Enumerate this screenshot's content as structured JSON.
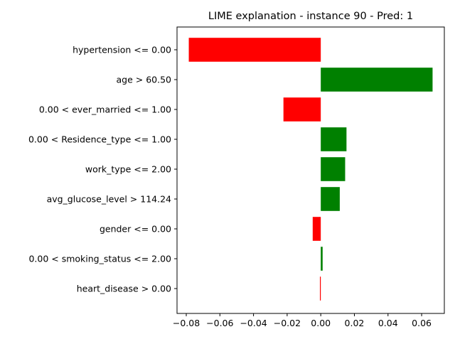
{
  "chart_data": {
    "type": "bar",
    "orientation": "horizontal",
    "title": "LIME explanation - instance 90 - Pred: 1",
    "xlabel": "",
    "ylabel": "",
    "categories": [
      "hypertension <= 0.00",
      "age > 60.50",
      "0.00 < ever_married <= 1.00",
      "0.00 < Residence_type <= 1.00",
      "work_type <= 2.00",
      "avg_glucose_level > 114.24",
      "gender <= 0.00",
      "0.00 < smoking_status <= 2.00",
      "heart_disease > 0.00"
    ],
    "values": [
      -0.0785,
      0.0665,
      -0.0222,
      0.0153,
      0.0145,
      0.0113,
      -0.0048,
      0.0011,
      -0.0005
    ],
    "xlim": [
      -0.0855,
      0.0735
    ],
    "xticks": [
      -0.08,
      -0.06,
      -0.04,
      -0.02,
      0.0,
      0.02,
      0.04,
      0.06
    ],
    "xtick_labels": [
      "−0.08",
      "−0.06",
      "−0.04",
      "−0.02",
      "0.00",
      "0.02",
      "0.04",
      "0.06"
    ],
    "colors": {
      "positive": "#008000",
      "negative": "#ff0000"
    },
    "grid": false,
    "legend": "none"
  }
}
